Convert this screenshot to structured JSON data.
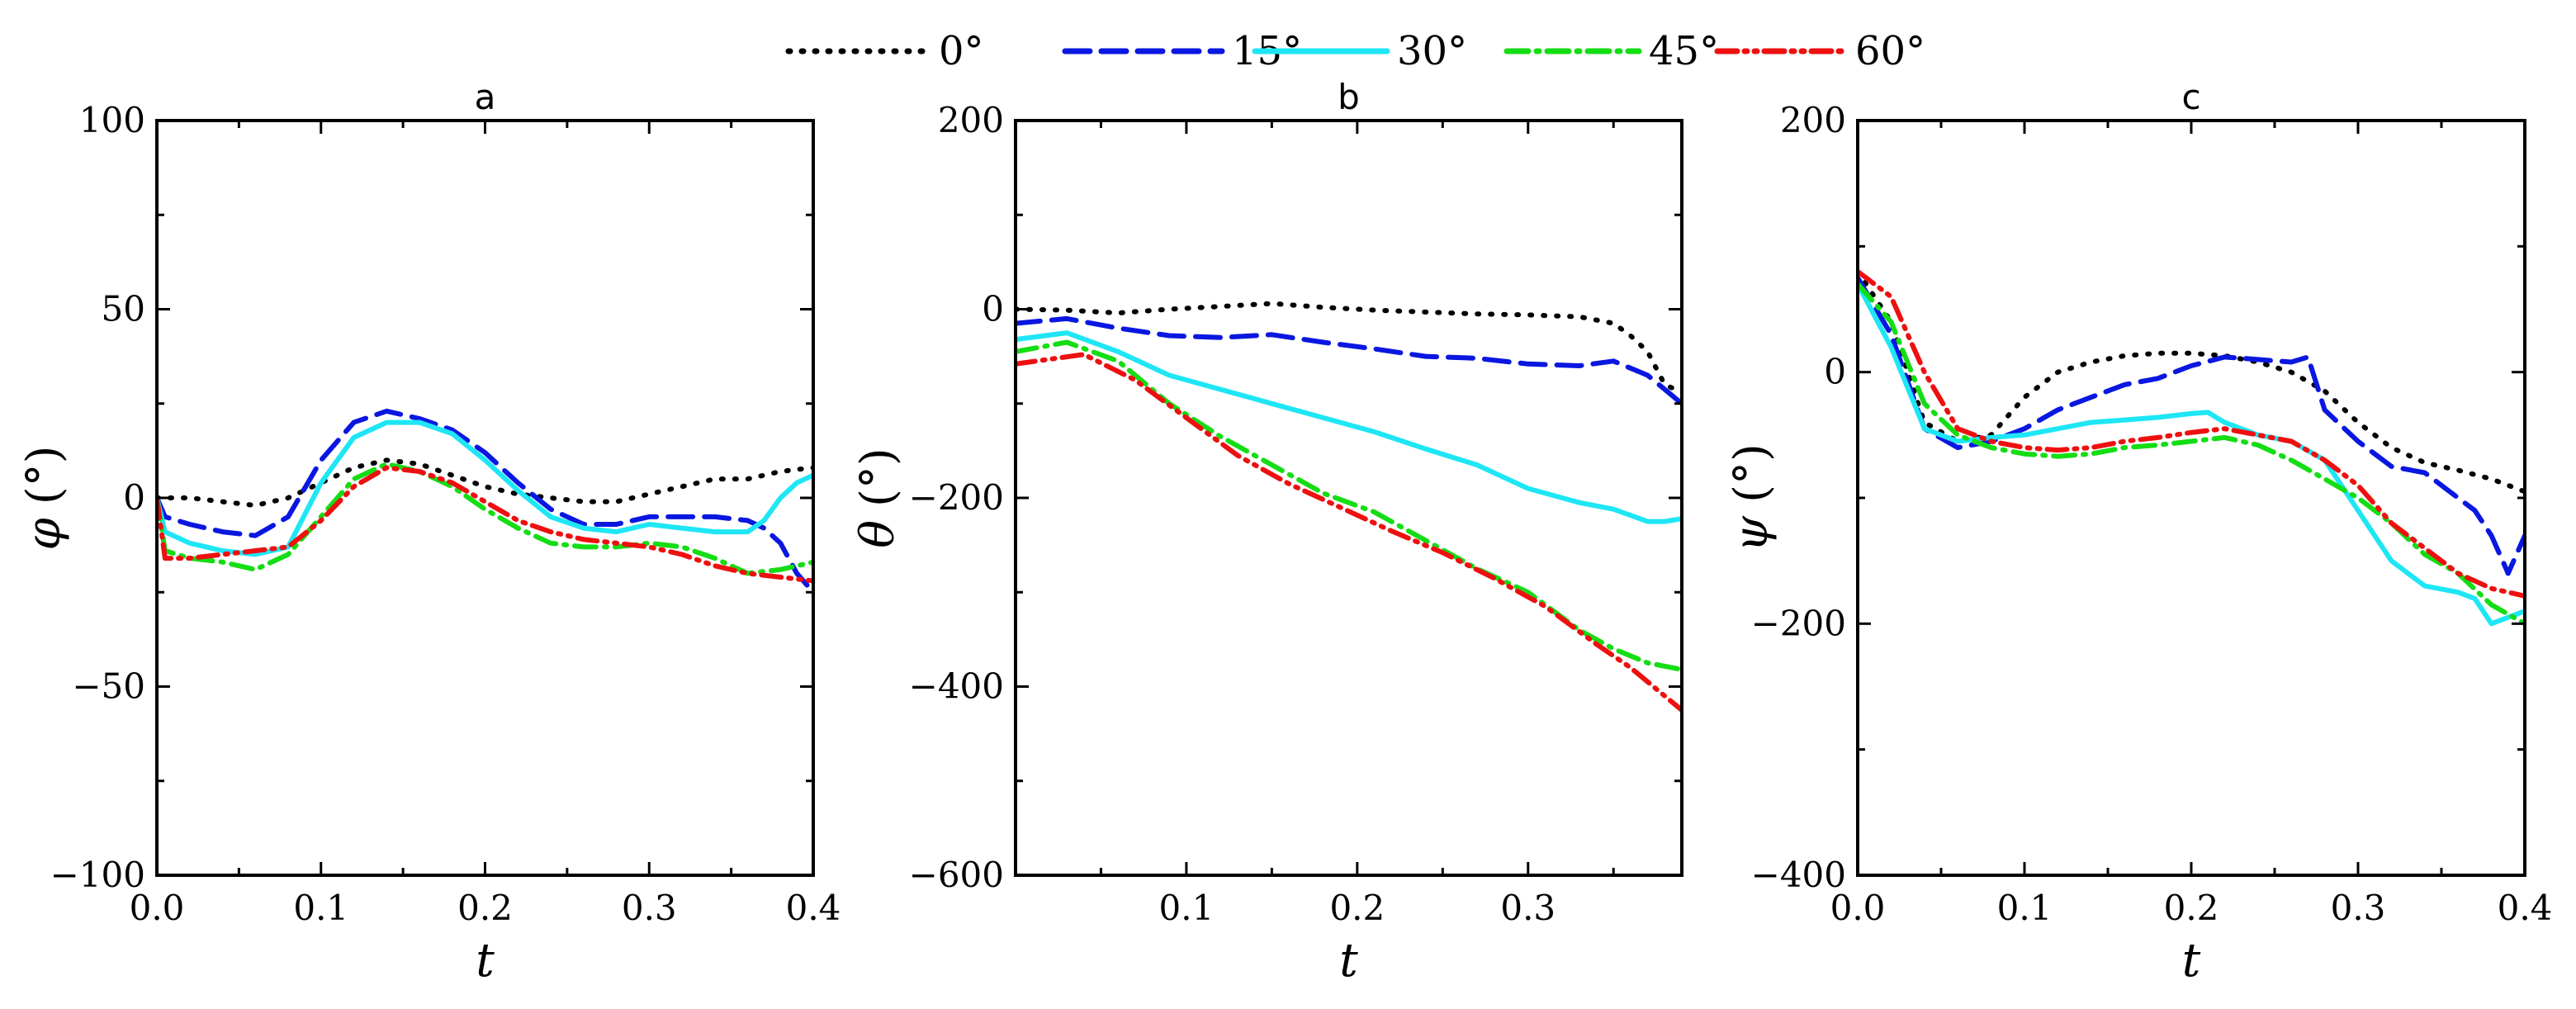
{
  "legend": [
    {
      "label": "0°",
      "color": "#000000",
      "dash": "dot"
    },
    {
      "label": "15°",
      "color": "#0a17e0",
      "dash": "dash"
    },
    {
      "label": "30°",
      "color": "#1ee6f5",
      "dash": "solid"
    },
    {
      "label": "45°",
      "color": "#14dd14",
      "dash": "dashdot"
    },
    {
      "label": "60°",
      "color": "#ee1010",
      "dash": "dashdotdot"
    }
  ],
  "chart_data": [
    {
      "type": "line",
      "title": "a",
      "xlabel": "t",
      "ylabel_var": "φ",
      "ylabel_unit": "(°)",
      "xlim": [
        0,
        0.4
      ],
      "ylim": [
        -100,
        100
      ],
      "xticks": [
        0,
        0.1,
        0.2,
        0.3,
        0.4
      ],
      "xtick_labels": [
        "0.0",
        "0.1",
        "0.2",
        "0.3",
        "0.4"
      ],
      "yticks": [
        -100,
        -50,
        0,
        50,
        100
      ],
      "ytick_labels": [
        "−100",
        "−50",
        "0",
        "50",
        "100"
      ],
      "series": [
        {
          "name": "0°",
          "x": [
            0,
            0.02,
            0.04,
            0.06,
            0.08,
            0.1,
            0.12,
            0.14,
            0.16,
            0.18,
            0.2,
            0.22,
            0.24,
            0.26,
            0.28,
            0.3,
            0.32,
            0.34,
            0.36,
            0.38,
            0.4
          ],
          "y": [
            0,
            0,
            -1,
            -2,
            0,
            4,
            8,
            10,
            9,
            6,
            3,
            1,
            0,
            -1,
            -1,
            1,
            3,
            5,
            5,
            7,
            8
          ]
        },
        {
          "name": "15°",
          "x": [
            0,
            0.005,
            0.02,
            0.04,
            0.06,
            0.08,
            0.1,
            0.12,
            0.14,
            0.16,
            0.18,
            0.2,
            0.22,
            0.24,
            0.26,
            0.28,
            0.3,
            0.32,
            0.34,
            0.36,
            0.37,
            0.38,
            0.39,
            0.4
          ],
          "y": [
            0,
            -5,
            -7,
            -9,
            -10,
            -5,
            10,
            20,
            23,
            21,
            18,
            12,
            4,
            -3,
            -7,
            -7,
            -5,
            -5,
            -5,
            -6,
            -8,
            -12,
            -20,
            -25
          ]
        },
        {
          "name": "30°",
          "x": [
            0,
            0.005,
            0.02,
            0.04,
            0.06,
            0.08,
            0.1,
            0.12,
            0.14,
            0.16,
            0.18,
            0.2,
            0.22,
            0.24,
            0.26,
            0.28,
            0.3,
            0.32,
            0.34,
            0.36,
            0.37,
            0.38,
            0.39,
            0.4
          ],
          "y": [
            0,
            -9,
            -12,
            -14,
            -15,
            -13,
            4,
            16,
            20,
            20,
            17,
            10,
            2,
            -5,
            -8,
            -9,
            -7,
            -8,
            -9,
            -9,
            -6,
            0,
            4,
            6
          ]
        },
        {
          "name": "45°",
          "x": [
            0,
            0.005,
            0.02,
            0.04,
            0.06,
            0.08,
            0.1,
            0.12,
            0.14,
            0.16,
            0.18,
            0.2,
            0.22,
            0.24,
            0.26,
            0.28,
            0.3,
            0.32,
            0.34,
            0.36,
            0.38,
            0.4
          ],
          "y": [
            0,
            -14,
            -16,
            -17,
            -19,
            -15,
            -5,
            5,
            9,
            7,
            3,
            -3,
            -8,
            -12,
            -13,
            -13,
            -12,
            -13,
            -16,
            -20,
            -19,
            -17
          ]
        },
        {
          "name": "60°",
          "x": [
            0,
            0.005,
            0.02,
            0.04,
            0.06,
            0.08,
            0.1,
            0.12,
            0.14,
            0.16,
            0.18,
            0.2,
            0.22,
            0.24,
            0.26,
            0.28,
            0.3,
            0.32,
            0.34,
            0.36,
            0.38,
            0.4
          ],
          "y": [
            0,
            -16,
            -16,
            -15,
            -14,
            -13,
            -6,
            3,
            8,
            7,
            4,
            -1,
            -6,
            -9,
            -11,
            -12,
            -13,
            -15,
            -18,
            -20,
            -21,
            -22
          ]
        }
      ]
    },
    {
      "type": "line",
      "title": "b",
      "xlabel": "t",
      "ylabel_var": "θ",
      "ylabel_unit": "(°)",
      "xlim": [
        0,
        0.39
      ],
      "ylim": [
        -600,
        200
      ],
      "xticks": [
        0.1,
        0.2,
        0.3
      ],
      "xtick_labels": [
        "0.1",
        "0.2",
        "0.3"
      ],
      "yticks": [
        -600,
        -400,
        -200,
        0,
        200
      ],
      "ytick_labels": [
        "−600",
        "−400",
        "−200",
        "0",
        "200"
      ],
      "series": [
        {
          "name": "0°",
          "x": [
            0,
            0.03,
            0.06,
            0.09,
            0.12,
            0.15,
            0.18,
            0.21,
            0.24,
            0.27,
            0.3,
            0.33,
            0.35,
            0.36,
            0.37,
            0.38,
            0.39
          ],
          "y": [
            0,
            -1,
            -4,
            0,
            3,
            6,
            2,
            -1,
            -3,
            -5,
            -6,
            -8,
            -15,
            -28,
            -45,
            -80,
            -88
          ]
        },
        {
          "name": "15°",
          "x": [
            0,
            0.03,
            0.06,
            0.09,
            0.12,
            0.15,
            0.18,
            0.21,
            0.24,
            0.27,
            0.3,
            0.33,
            0.35,
            0.37,
            0.38,
            0.39
          ],
          "y": [
            -15,
            -10,
            -20,
            -28,
            -30,
            -27,
            -35,
            -42,
            -50,
            -52,
            -58,
            -60,
            -55,
            -70,
            -85,
            -100
          ]
        },
        {
          "name": "30°",
          "x": [
            0,
            0.03,
            0.06,
            0.09,
            0.12,
            0.15,
            0.18,
            0.21,
            0.24,
            0.27,
            0.3,
            0.33,
            0.35,
            0.37,
            0.38,
            0.39
          ],
          "y": [
            -32,
            -25,
            -45,
            -70,
            -85,
            -100,
            -115,
            -130,
            -148,
            -165,
            -190,
            -205,
            -212,
            -225,
            -225,
            -222
          ]
        },
        {
          "name": "45°",
          "x": [
            0,
            0.03,
            0.06,
            0.09,
            0.12,
            0.15,
            0.18,
            0.21,
            0.24,
            0.27,
            0.3,
            0.33,
            0.35,
            0.37,
            0.39
          ],
          "y": [
            -45,
            -35,
            -55,
            -100,
            -135,
            -165,
            -195,
            -215,
            -245,
            -275,
            -300,
            -340,
            -360,
            -375,
            -382
          ]
        },
        {
          "name": "60°",
          "x": [
            0,
            0.04,
            0.07,
            0.1,
            0.13,
            0.16,
            0.19,
            0.22,
            0.25,
            0.28,
            0.31,
            0.34,
            0.36,
            0.38,
            0.39
          ],
          "y": [
            -58,
            -48,
            -75,
            -115,
            -155,
            -185,
            -210,
            -235,
            -258,
            -285,
            -315,
            -355,
            -380,
            -410,
            -425
          ]
        }
      ]
    },
    {
      "type": "line",
      "title": "c",
      "xlabel": "t",
      "ylabel_var": "ψ",
      "ylabel_unit": "(°)",
      "xlim": [
        0,
        0.4
      ],
      "ylim": [
        -400,
        200
      ],
      "xticks": [
        0,
        0.1,
        0.2,
        0.3,
        0.4
      ],
      "xtick_labels": [
        "0.0",
        "0.1",
        "0.2",
        "0.3",
        "0.4"
      ],
      "yticks": [
        -400,
        -200,
        0,
        200
      ],
      "ytick_labels": [
        "−400",
        "−200",
        "0",
        "200"
      ],
      "series": [
        {
          "name": "0°",
          "x": [
            0,
            0.02,
            0.04,
            0.06,
            0.08,
            0.1,
            0.12,
            0.14,
            0.16,
            0.18,
            0.2,
            0.22,
            0.24,
            0.26,
            0.28,
            0.3,
            0.32,
            0.34,
            0.36,
            0.38,
            0.4
          ],
          "y": [
            80,
            40,
            -40,
            -55,
            -50,
            -20,
            0,
            8,
            13,
            15,
            15,
            13,
            8,
            0,
            -15,
            -40,
            -60,
            -72,
            -78,
            -85,
            -95
          ]
        },
        {
          "name": "15°",
          "x": [
            0,
            0.02,
            0.04,
            0.06,
            0.08,
            0.1,
            0.12,
            0.14,
            0.16,
            0.18,
            0.2,
            0.22,
            0.24,
            0.26,
            0.27,
            0.28,
            0.3,
            0.32,
            0.34,
            0.36,
            0.37,
            0.38,
            0.39,
            0.4
          ],
          "y": [
            75,
            30,
            -45,
            -60,
            -55,
            -45,
            -30,
            -20,
            -10,
            -5,
            5,
            12,
            10,
            8,
            12,
            -30,
            -55,
            -75,
            -80,
            -100,
            -110,
            -130,
            -160,
            -130
          ]
        },
        {
          "name": "30°",
          "x": [
            0,
            0.02,
            0.04,
            0.06,
            0.08,
            0.1,
            0.12,
            0.14,
            0.16,
            0.18,
            0.2,
            0.21,
            0.22,
            0.24,
            0.26,
            0.28,
            0.3,
            0.32,
            0.34,
            0.36,
            0.37,
            0.38,
            0.39,
            0.4
          ],
          "y": [
            70,
            20,
            -45,
            -55,
            -52,
            -50,
            -45,
            -40,
            -38,
            -36,
            -33,
            -32,
            -40,
            -50,
            -55,
            -70,
            -110,
            -150,
            -170,
            -175,
            -180,
            -200,
            -195,
            -190
          ]
        },
        {
          "name": "45°",
          "x": [
            0,
            0.02,
            0.04,
            0.06,
            0.08,
            0.1,
            0.12,
            0.14,
            0.16,
            0.18,
            0.2,
            0.22,
            0.24,
            0.26,
            0.28,
            0.3,
            0.32,
            0.34,
            0.36,
            0.38,
            0.4
          ],
          "y": [
            70,
            40,
            -25,
            -50,
            -60,
            -65,
            -67,
            -65,
            -60,
            -58,
            -55,
            -52,
            -58,
            -70,
            -85,
            -100,
            -120,
            -145,
            -160,
            -185,
            -200
          ]
        },
        {
          "name": "60°",
          "x": [
            0,
            0.02,
            0.04,
            0.06,
            0.08,
            0.1,
            0.12,
            0.14,
            0.16,
            0.18,
            0.2,
            0.22,
            0.24,
            0.26,
            0.28,
            0.3,
            0.32,
            0.34,
            0.36,
            0.38,
            0.4
          ],
          "y": [
            80,
            60,
            0,
            -45,
            -55,
            -60,
            -62,
            -60,
            -55,
            -52,
            -48,
            -45,
            -50,
            -55,
            -70,
            -90,
            -120,
            -140,
            -160,
            -172,
            -178
          ]
        }
      ]
    }
  ]
}
